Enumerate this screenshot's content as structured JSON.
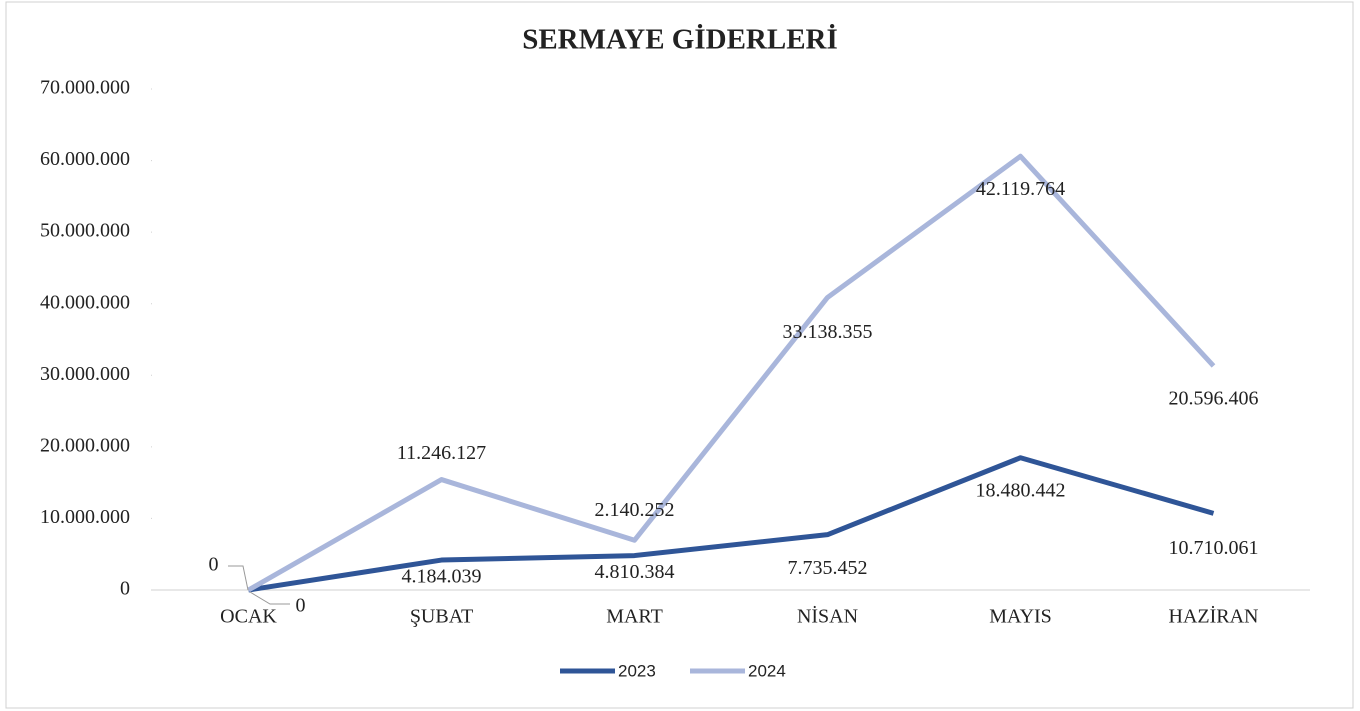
{
  "chart_data": {
    "type": "line",
    "stacked": true,
    "title": "SERMAYE GİDERLERİ",
    "categories": [
      "OCAK",
      "ŞUBAT",
      "MART",
      "NİSAN",
      "MAYIS",
      "HAZİRAN"
    ],
    "series": [
      {
        "name": "2023",
        "color": "#2f5597",
        "values": [
          0,
          4184039,
          4810384,
          7735452,
          18480442,
          10710061
        ],
        "value_labels": [
          "0",
          "4.184.039",
          "4.810.384",
          "7.735.452",
          "18.480.442",
          "10.710.061"
        ]
      },
      {
        "name": "2024",
        "color": "#a9b6db",
        "values": [
          0,
          11246127,
          2140252,
          33138355,
          42119764,
          20596406
        ],
        "value_labels": [
          "0",
          "11.246.127",
          "2.140.252",
          "33.138.355",
          "42.119.764",
          "20.596.406"
        ]
      }
    ],
    "ylim": [
      0,
      70000000
    ],
    "yticks": [
      0,
      {
        "value": 10000000,
        "label": "10.000.000"
      },
      {
        "value": 20000000,
        "label": "20.000.000"
      },
      {
        "value": 30000000,
        "label": "30.000.000"
      },
      {
        "value": 40000000,
        "label": "40.000.000"
      },
      {
        "value": 50000000,
        "label": "50.000.000"
      },
      {
        "value": 60000000,
        "label": "60.000.000"
      },
      {
        "value": 70000000,
        "label": "70.000.000"
      }
    ],
    "grid": false,
    "legend": "bottom"
  }
}
